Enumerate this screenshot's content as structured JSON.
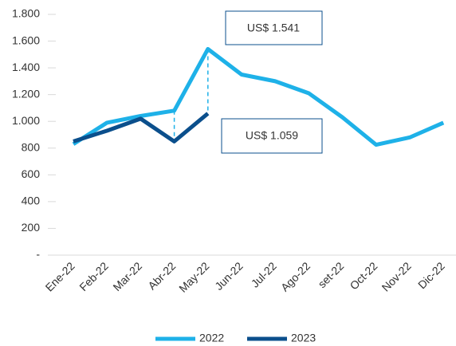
{
  "chart_data": {
    "type": "line",
    "categories": [
      "Ene-22",
      "Feb-22",
      "Mar-22",
      "Abr-22",
      "May-22",
      "Jun-22",
      "Jul-22",
      "Ago-22",
      "set-22",
      "Oct-22",
      "Nov-22",
      "Dic-22"
    ],
    "series": [
      {
        "name": "2022",
        "color": "#1eb1e8",
        "values": [
          830,
          990,
          1040,
          1080,
          1541,
          1350,
          1300,
          1210,
          1030,
          825,
          880,
          990
        ]
      },
      {
        "name": "2023",
        "color": "#0b4f8c",
        "values": [
          850,
          930,
          1020,
          850,
          1059,
          null,
          null,
          null,
          null,
          null,
          null,
          null
        ]
      }
    ],
    "annotations": [
      "US$ 1.541",
      "US$ 1.059"
    ],
    "ylim": [
      0,
      1800
    ],
    "yticks": [
      {
        "value": 0,
        "label": "-"
      },
      200,
      400,
      600,
      800,
      {
        "value": 1000,
        "label": "1.000"
      },
      {
        "value": 1200,
        "label": "1.200"
      },
      {
        "value": 1400,
        "label": "1.400"
      },
      {
        "value": 1600,
        "label": "1.600"
      },
      {
        "value": 1800,
        "label": "1.800"
      }
    ],
    "legend": "bottom"
  }
}
